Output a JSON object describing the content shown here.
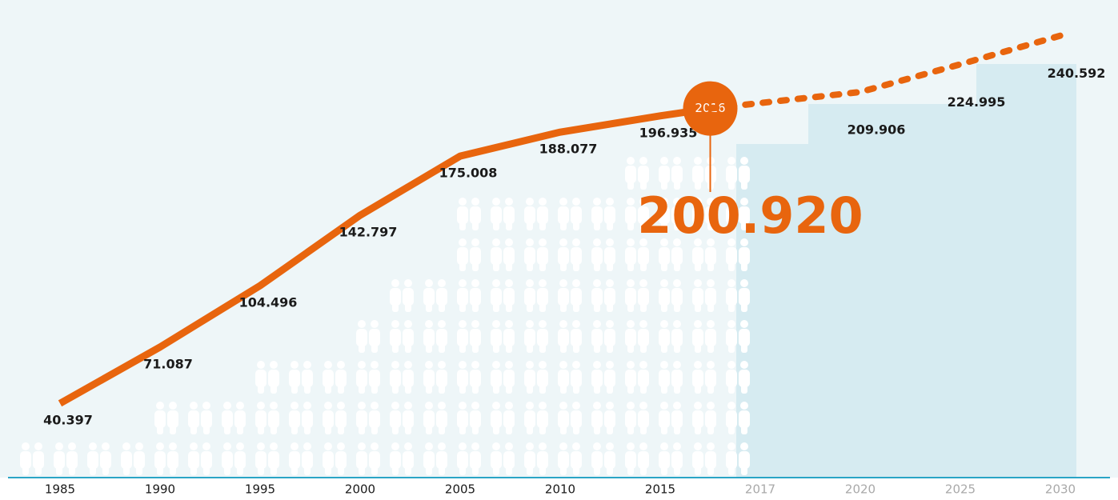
{
  "chart_data": {
    "type": "line",
    "color": "#e8650e",
    "xticks": [
      1985,
      1990,
      1995,
      2000,
      2005,
      2010,
      2015,
      2017,
      2020,
      2025,
      2030
    ],
    "ylim": [
      0,
      260000
    ],
    "series": [
      {
        "style": "solid",
        "x": [
          1985,
          1990,
          1995,
          2000,
          2005,
          2010,
          2015,
          2016
        ],
        "values": [
          40397,
          71087,
          104496,
          142797,
          175008,
          188077,
          196935,
          200920
        ],
        "value_labels": [
          "40.397",
          "71.087",
          "104.496",
          "142.797",
          "175.008",
          "188.077",
          "196.935",
          "200.920"
        ]
      },
      {
        "style": "dashed",
        "x": [
          2020,
          2025,
          2030
        ],
        "values": [
          209906,
          224995,
          240592
        ],
        "value_labels": [
          "209.906",
          "224.995",
          "240.592"
        ]
      }
    ]
  }
}
